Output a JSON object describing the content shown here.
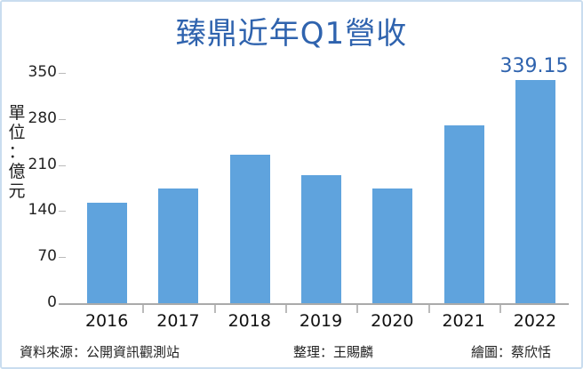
{
  "chart_data": {
    "type": "bar",
    "title": "臻鼎近年Q1營收",
    "ylabel": "單位：億元",
    "xlabel": "",
    "categories": [
      "2016",
      "2017",
      "2018",
      "2019",
      "2020",
      "2021",
      "2022"
    ],
    "values": [
      153,
      175,
      226,
      194,
      175,
      270,
      339.15
    ],
    "data_labels": {
      "2022": "339.15"
    },
    "yticks": [
      "0",
      "70",
      "140",
      "210",
      "280",
      "350"
    ],
    "ylim": [
      0,
      350
    ],
    "grid": false,
    "bar_color": "#5fa3dd",
    "title_color": "#2f63ae"
  },
  "title": "臻鼎近年Q1營收",
  "ylabel_chars": [
    "單",
    "位",
    "：",
    "億",
    "元"
  ],
  "value_label": "339.15",
  "footer": {
    "source": "資料來源：公開資訊觀測站",
    "editor": "整理：王賜麟",
    "artist": "繪圖：蔡欣恬"
  }
}
